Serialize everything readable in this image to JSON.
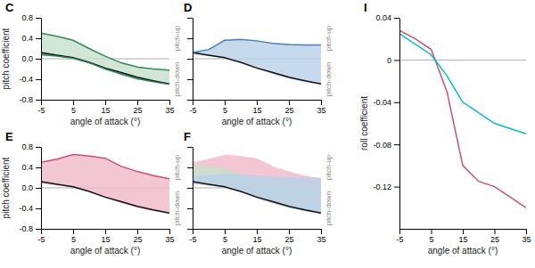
{
  "chart_data": [
    {
      "type": "line",
      "title": "C",
      "xlabel": "angle of attack (°)",
      "ylabel": "pitch coefficient",
      "x": [
        -5,
        0,
        5,
        10,
        15,
        20,
        25,
        30,
        35
      ],
      "xlim": [
        -5,
        35
      ],
      "xticks": [
        -5,
        5,
        15,
        25,
        35
      ],
      "ylim": [
        -0.8,
        0.8
      ],
      "yticks": [
        -0.8,
        -0.4,
        {
          "value": 0,
          "label": "0.0"
        },
        0.4,
        0.8
      ],
      "hline": 0,
      "annotations": [
        "pitch-up",
        "pitch-down"
      ],
      "series": [
        {
          "type": "area",
          "color": "#c5e0cc",
          "values": [
            0.5,
            0.44,
            0.36,
            0.2,
            0.05,
            -0.08,
            -0.16,
            -0.2,
            -0.22
          ],
          "lower": [
            0.08,
            0.05,
            0.01,
            -0.08,
            -0.2,
            -0.3,
            -0.39,
            -0.45,
            -0.5
          ]
        },
        {
          "type": "area",
          "color": "#6aad80",
          "values": [
            0.12,
            0.07,
            0.02,
            -0.07,
            -0.18,
            -0.27,
            -0.36,
            -0.43,
            -0.49
          ],
          "lower": [
            0.08,
            0.05,
            0.01,
            -0.08,
            -0.2,
            -0.3,
            -0.39,
            -0.45,
            -0.5
          ]
        },
        {
          "type": "line",
          "color": "#111111",
          "values": [
            0.12,
            0.07,
            0.02,
            -0.07,
            -0.18,
            -0.27,
            -0.36,
            -0.43,
            -0.49
          ]
        },
        {
          "type": "line",
          "color": "#2e8b57",
          "values": [
            0.5,
            0.44,
            0.36,
            0.2,
            0.05,
            -0.08,
            -0.16,
            -0.2,
            -0.22
          ]
        },
        {
          "type": "line",
          "color": "#2e8b57",
          "values": [
            0.08,
            0.05,
            0.01,
            -0.08,
            -0.2,
            -0.3,
            -0.39,
            -0.45,
            -0.5
          ]
        }
      ]
    },
    {
      "type": "line",
      "title": "D",
      "xlabel": "angle of attack (°)",
      "tick_labels": "x",
      "x": [
        -5,
        0,
        5,
        10,
        15,
        20,
        25,
        30,
        35
      ],
      "xlim": [
        -5,
        35
      ],
      "xticks": [
        -5,
        5,
        15,
        25,
        35
      ],
      "ylim": [
        -0.8,
        0.8
      ],
      "yticks": [
        -0.8,
        -0.4,
        0,
        0.4,
        0.8
      ],
      "hline": 0,
      "annotations": [
        "pitch-up",
        "pitch-down"
      ],
      "series": [
        {
          "type": "area",
          "color": "#b8d0e8",
          "values": [
            0.12,
            0.18,
            0.36,
            0.38,
            0.35,
            0.3,
            0.28,
            0.27,
            0.27
          ],
          "lower": [
            0.08,
            0.05,
            0.01,
            -0.08,
            -0.2,
            -0.3,
            -0.39,
            -0.45,
            -0.5
          ]
        },
        {
          "type": "line",
          "color": "#111111",
          "values": [
            0.12,
            0.07,
            0.02,
            -0.07,
            -0.18,
            -0.27,
            -0.36,
            -0.43,
            -0.49
          ]
        },
        {
          "type": "line",
          "color": "#4a7fb5",
          "values": [
            0.12,
            0.18,
            0.36,
            0.38,
            0.35,
            0.3,
            0.28,
            0.27,
            0.27
          ]
        }
      ]
    },
    {
      "type": "line",
      "title": "E",
      "xlabel": "angle of attack (°)",
      "ylabel": "pitch coefficient",
      "x": [
        -5,
        0,
        5,
        10,
        15,
        20,
        25,
        30,
        35
      ],
      "xlim": [
        -5,
        35
      ],
      "xticks": [
        -5,
        5,
        15,
        25,
        35
      ],
      "ylim": [
        -0.8,
        0.8
      ],
      "yticks": [
        -0.8,
        -0.4,
        {
          "value": 0,
          "label": "0.0"
        },
        0.4,
        0.8
      ],
      "hline": 0,
      "annotations": [
        "pitch-up",
        "pitch-down"
      ],
      "series": [
        {
          "type": "area",
          "color": "#f0b8c8",
          "values": [
            0.5,
            0.56,
            0.65,
            0.62,
            0.58,
            0.42,
            0.32,
            0.24,
            0.18
          ],
          "lower": [
            0.08,
            0.05,
            0.01,
            -0.08,
            -0.2,
            -0.3,
            -0.39,
            -0.45,
            -0.5
          ]
        },
        {
          "type": "line",
          "color": "#111111",
          "values": [
            0.12,
            0.07,
            0.02,
            -0.07,
            -0.18,
            -0.27,
            -0.36,
            -0.43,
            -0.49
          ]
        },
        {
          "type": "line",
          "color": "#c9506e",
          "values": [
            0.5,
            0.56,
            0.65,
            0.62,
            0.58,
            0.42,
            0.32,
            0.24,
            0.18
          ]
        }
      ]
    },
    {
      "type": "line",
      "title": "F",
      "xlabel": "angle of attack (°)",
      "tick_labels": "x",
      "x": [
        -5,
        0,
        5,
        10,
        15,
        20,
        25,
        30,
        35
      ],
      "xlim": [
        -5,
        35
      ],
      "xticks": [
        -5,
        5,
        15,
        25,
        35
      ],
      "ylim": [
        -0.8,
        0.8
      ],
      "yticks": [
        -0.8,
        -0.4,
        0,
        0.4,
        0.8
      ],
      "hline": 0,
      "annotations": [
        "pitch-up",
        "pitch-down"
      ],
      "series": [
        {
          "type": "area",
          "color": "#f0b8c8",
          "values": [
            0.5,
            0.56,
            0.65,
            0.62,
            0.58,
            0.42,
            0.32,
            0.24,
            0.18
          ],
          "lower": [
            0.08,
            0.05,
            0.01,
            -0.08,
            -0.2,
            -0.3,
            -0.39,
            -0.45,
            -0.5
          ]
        },
        {
          "type": "area",
          "color": "#c5e0cc",
          "values": [
            0.45,
            0.42,
            0.38,
            0.28,
            0.18,
            0.08,
            0.03,
            0.01,
            0.0
          ],
          "lower": [
            0.08,
            0.05,
            0.01,
            -0.08,
            -0.2,
            -0.3,
            -0.39,
            -0.45,
            -0.5
          ]
        },
        {
          "type": "area",
          "color": "#b8d0e8",
          "values": [
            0.22,
            0.25,
            0.28,
            0.26,
            0.24,
            0.22,
            0.21,
            0.2,
            0.2
          ],
          "lower": [
            0.08,
            0.05,
            0.01,
            -0.08,
            -0.2,
            -0.3,
            -0.39,
            -0.45,
            -0.5
          ]
        },
        {
          "type": "line",
          "color": "#111111",
          "values": [
            0.12,
            0.07,
            0.02,
            -0.07,
            -0.18,
            -0.27,
            -0.36,
            -0.43,
            -0.49
          ]
        }
      ]
    },
    {
      "type": "line",
      "title": "I",
      "xlabel": "angle of attack (°)",
      "ylabel": "roll coefficient",
      "x": [
        -5,
        0,
        5,
        10,
        15,
        20,
        25,
        30,
        35
      ],
      "xlim": [
        -5,
        35
      ],
      "xticks": [
        -5,
        5,
        15,
        25,
        35
      ],
      "ylim": [
        -0.16,
        0.04
      ],
      "yticks": [
        0.04,
        0,
        -0.04,
        -0.08,
        -0.12
      ],
      "hline": 0,
      "series": [
        {
          "type": "line",
          "color": "#c9506e",
          "values": [
            0.028,
            0.02,
            0.01,
            -0.03,
            -0.1,
            -0.115,
            -0.12,
            -0.13,
            -0.14
          ]
        },
        {
          "type": "line",
          "color": "#00bcd4",
          "values": [
            0.025,
            0.015,
            0.005,
            -0.015,
            -0.04,
            -0.05,
            -0.06,
            -0.065,
            -0.07
          ]
        }
      ]
    }
  ]
}
